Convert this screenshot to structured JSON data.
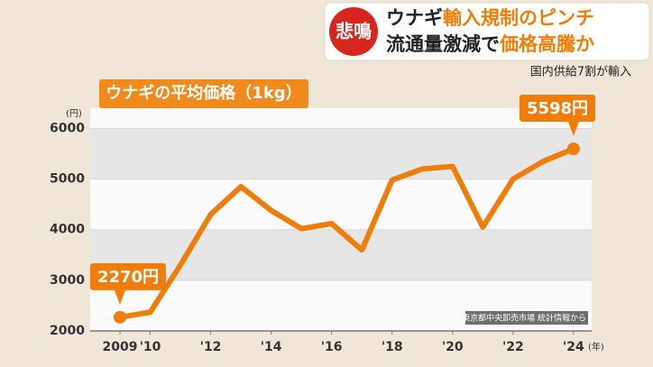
{
  "header": {
    "badge": "悲鳴",
    "line1": [
      {
        "text": "ウナギ",
        "accent": false
      },
      {
        "text": "輸入規制のピンチ",
        "accent": true
      }
    ],
    "line2": [
      {
        "text": "流通量激減で",
        "accent": false
      },
      {
        "text": "価格高騰か",
        "accent": true
      }
    ],
    "subtitle": "国内供給7割が輸入"
  },
  "chart_data": {
    "type": "line",
    "title": "ウナギの平均価格（1kg）",
    "y_unit": "(円)",
    "x_unit": "(年)",
    "source": "東京都中央卸売市場 統計情報から",
    "x": [
      2009,
      2010,
      2011,
      2012,
      2013,
      2014,
      2015,
      2016,
      2017,
      2018,
      2019,
      2020,
      2021,
      2022,
      2023,
      2024
    ],
    "series": [
      {
        "name": "ウナギの平均価格",
        "color": "#f07d0a",
        "values": [
          2270,
          2370,
          3300,
          4300,
          4850,
          4380,
          4020,
          4120,
          3600,
          4980,
          5200,
          5250,
          4050,
          5000,
          5350,
          5598
        ],
        "value_labels": [
          "2270円",
          null,
          null,
          null,
          null,
          null,
          null,
          null,
          null,
          null,
          null,
          null,
          null,
          null,
          null,
          "5598円"
        ]
      }
    ],
    "xlim": [
      2008.3,
      2024.6
    ],
    "xticks": [
      2009,
      {
        "value": 2010,
        "label": "'10"
      },
      {
        "value": 2012,
        "label": "'12"
      },
      {
        "value": 2014,
        "label": "'14"
      },
      {
        "value": 2016,
        "label": "'16"
      },
      {
        "value": 2018,
        "label": "'18"
      },
      {
        "value": 2020,
        "label": "'20"
      },
      {
        "value": 2022,
        "label": "'22"
      },
      {
        "value": 2024,
        "label": "'24"
      }
    ],
    "ylim": [
      2000,
      6400
    ],
    "yticks": [
      2000,
      3000,
      4000,
      5000,
      6000
    ],
    "grid": true
  }
}
